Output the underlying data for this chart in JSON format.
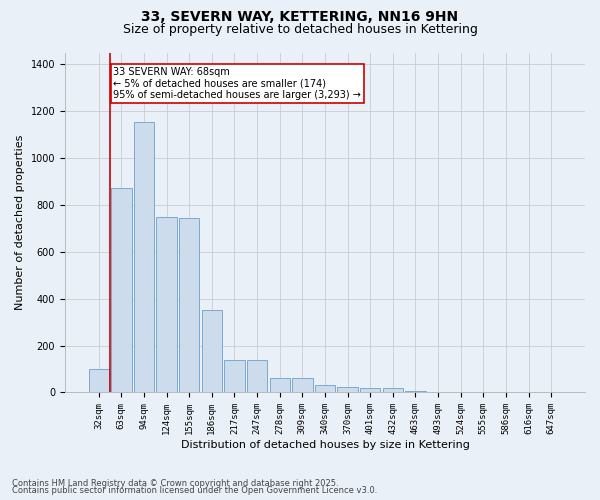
{
  "title_line1": "33, SEVERN WAY, KETTERING, NN16 9HN",
  "title_line2": "Size of property relative to detached houses in Kettering",
  "xlabel": "Distribution of detached houses by size in Kettering",
  "ylabel": "Number of detached properties",
  "categories": [
    "32sqm",
    "63sqm",
    "94sqm",
    "124sqm",
    "155sqm",
    "186sqm",
    "217sqm",
    "247sqm",
    "278sqm",
    "309sqm",
    "340sqm",
    "370sqm",
    "401sqm",
    "432sqm",
    "463sqm",
    "493sqm",
    "524sqm",
    "555sqm",
    "586sqm",
    "616sqm",
    "647sqm"
  ],
  "values": [
    100,
    870,
    1155,
    750,
    745,
    350,
    140,
    140,
    60,
    60,
    30,
    25,
    18,
    18,
    5,
    0,
    0,
    0,
    0,
    0,
    0
  ],
  "bar_color": "#ccdcec",
  "bar_edge_color": "#7aaace",
  "vline_x_idx": 1,
  "vline_color": "#cc0000",
  "annotation_text": "33 SEVERN WAY: 68sqm\n← 5% of detached houses are smaller (174)\n95% of semi-detached houses are larger (3,293) →",
  "annotation_box_color": "#ffffff",
  "annotation_box_edge_color": "#cc0000",
  "ylim": [
    0,
    1450
  ],
  "yticks": [
    0,
    200,
    400,
    600,
    800,
    1000,
    1200,
    1400
  ],
  "grid_color": "#cccccc",
  "bg_color": "#eaf0f8",
  "footnote1": "Contains HM Land Registry data © Crown copyright and database right 2025.",
  "footnote2": "Contains public sector information licensed under the Open Government Licence v3.0.",
  "title_fontsize": 10,
  "subtitle_fontsize": 9,
  "tick_fontsize": 6.5,
  "label_fontsize": 8,
  "footnote_fontsize": 6
}
